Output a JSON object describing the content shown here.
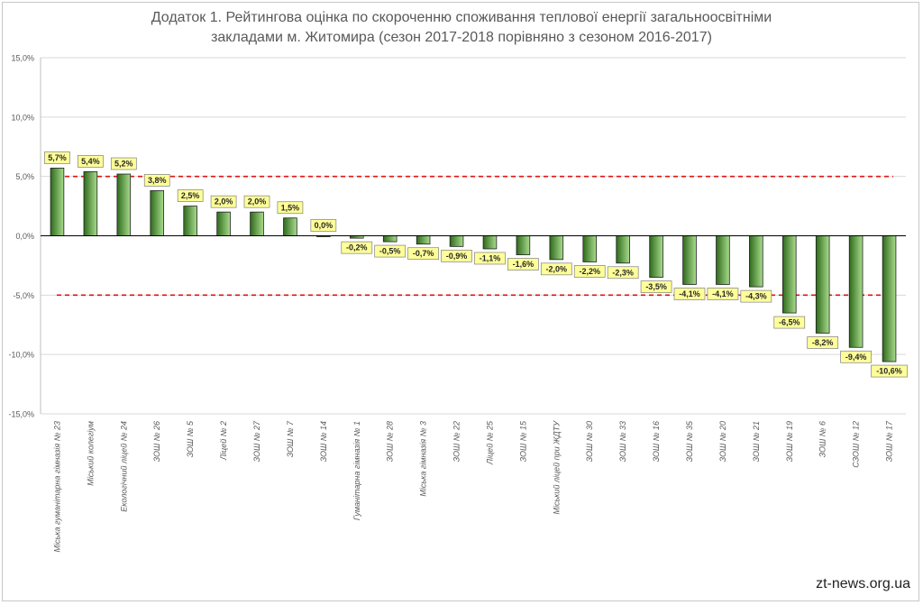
{
  "chart_data": {
    "type": "bar",
    "title": "Додаток 1. Рейтингова оцінка по скороченню споживання теплової енергії загальноосвітніми закладами м. Житомира (сезон 2017-2018 порівняно з сезоном 2016-2017)",
    "title_lines": [
      "Додаток 1. Рейтингова оцінка по скороченню споживання теплової енергії загальноосвітніми",
      "закладами м. Житомира (сезон 2017-2018 порівняно з сезоном 2016-2017)"
    ],
    "categories": [
      "Міська гуманітарна гімназія № 23",
      "Міський колегіум",
      "Екологічний ліцей № 24",
      "ЗОШ № 26",
      "ЗОШ № 5",
      "Ліцей № 2",
      "ЗОШ № 27",
      "ЗОШ № 7",
      "ЗОШ № 14",
      "Гуманітарна гімназія № 1",
      "ЗОШ № 28",
      "Міська гімназія № 3",
      "ЗОШ № 22",
      "Ліцей № 25",
      "ЗОШ № 15",
      "Міський ліцей при ЖДТУ",
      "ЗОШ № 30",
      "ЗОШ № 33",
      "ЗОШ № 16",
      "ЗОШ № 35",
      "ЗОШ № 20",
      "ЗОШ № 21",
      "ЗОШ № 19",
      "ЗОШ № 6",
      "СЗОШ № 12",
      "ЗОШ № 17"
    ],
    "values": [
      5.7,
      5.4,
      5.2,
      3.8,
      2.5,
      2.0,
      2.0,
      1.5,
      0.0,
      -0.2,
      -0.5,
      -0.7,
      -0.9,
      -1.1,
      -1.6,
      -2.0,
      -2.2,
      -2.3,
      -3.5,
      -4.1,
      -4.1,
      -4.3,
      -6.5,
      -8.2,
      -9.4,
      -10.6
    ],
    "data_labels": [
      "5,7%",
      "5,4%",
      "5,2%",
      "3,8%",
      "2,5%",
      "2,0%",
      "2,0%",
      "1,5%",
      "0,0%",
      "-0,2%",
      "-0,5%",
      "-0,7%",
      "-0,9%",
      "-1,1%",
      "-1,6%",
      "-2,0%",
      "-2,2%",
      "-2,3%",
      "-3,5%",
      "-4,1%",
      "-4,1%",
      "-4,3%",
      "-6,5%",
      "-8,2%",
      "-9,4%",
      "-10,6%"
    ],
    "ylim": [
      -15,
      15
    ],
    "yticks": [
      15,
      10,
      5,
      0,
      -5,
      -10,
      -15
    ],
    "ytick_labels": [
      "15,0%",
      "10,0%",
      "5,0%",
      "0,0%",
      "-5,0%",
      "-10,0%",
      "-15,0%"
    ],
    "reference_lines": [
      5,
      -5
    ],
    "grid": true,
    "colors": {
      "bar_dark": "#2f6a1c",
      "bar_light": "#a9dc8d",
      "label_bg": "#ffff99",
      "ref_line": "#e01414",
      "grid": "#d9d9d9",
      "axis_text": "#595959"
    }
  },
  "watermark": "zt-news.org.ua"
}
